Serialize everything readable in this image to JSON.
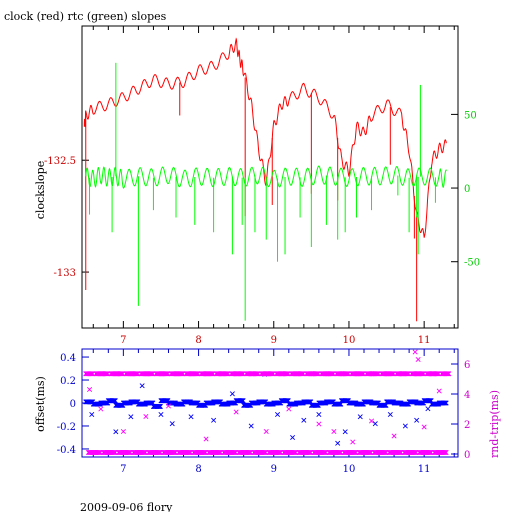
{
  "chart_data": [
    {
      "type": "line",
      "title": "clock (red) rtc (green) slopes",
      "xlim": [
        6.45,
        11.45
      ],
      "x_ticks": [
        7,
        8,
        9,
        10,
        11
      ],
      "ylabel_left": "clockslope",
      "ylim_left": [
        -133.25,
        -131.9
      ],
      "y_ticks_left": [
        -132.5,
        -133
      ],
      "y_ticklabels_left": [
        "-132.5",
        "-133"
      ],
      "ylim_right": [
        -95,
        110
      ],
      "y_ticks_right": [
        50,
        0,
        -50
      ],
      "y_ticklabels_right": [
        "50",
        "0",
        "-50"
      ],
      "colors": {
        "axes": "#000000",
        "x_ticks": "#cc0000",
        "left_axis": "#cc0000",
        "right_axis": "#00cc00"
      },
      "series": [
        {
          "axis": "left",
          "color": "#ff0000",
          "x": [
            6.48,
            6.5,
            6.6,
            6.8,
            7.0,
            7.2,
            7.4,
            7.6,
            7.8,
            8.0,
            8.2,
            8.4,
            8.5,
            8.55,
            8.6,
            8.7,
            8.8,
            8.9,
            9.0,
            9.1,
            9.2,
            9.4,
            9.6,
            9.8,
            9.9,
            10.0,
            10.1,
            10.2,
            10.3,
            10.5,
            10.7,
            10.8,
            10.9,
            11.0,
            11.1,
            11.2,
            11.3
          ],
          "y": [
            -132.35,
            -132.3,
            -132.27,
            -132.25,
            -132.22,
            -132.18,
            -132.14,
            -132.16,
            -132.15,
            -132.1,
            -132.08,
            -132.02,
            -131.98,
            -132.05,
            -132.1,
            -132.25,
            -132.45,
            -132.6,
            -132.35,
            -132.25,
            -132.23,
            -132.18,
            -132.22,
            -132.3,
            -132.5,
            -132.55,
            -132.35,
            -132.38,
            -132.3,
            -132.25,
            -132.3,
            -132.45,
            -132.75,
            -132.85,
            -132.5,
            -132.45,
            -132.43
          ],
          "spikes_x": [
            6.5,
            7.75,
            8.62,
            8.98,
            9.5,
            9.85,
            10.55,
            10.87,
            10.9
          ],
          "spikes_y": [
            -133.08,
            -132.3,
            -132.75,
            -132.7,
            -132.65,
            -132.68,
            -132.52,
            -132.85,
            -133.22
          ]
        },
        {
          "axis": "right",
          "color": "#00ff00",
          "x": [
            6.5,
            6.6,
            6.7,
            6.8,
            6.9,
            7.0,
            7.2,
            7.4,
            7.6,
            7.8,
            8.0,
            8.2,
            8.4,
            8.6,
            8.8,
            9.0,
            9.2,
            9.4,
            9.6,
            9.8,
            10.0,
            10.2,
            10.4,
            10.6,
            10.8,
            11.0,
            11.2,
            11.3
          ],
          "y": [
            8,
            6,
            9,
            7,
            8,
            6,
            8,
            7,
            9,
            6,
            8,
            7,
            8,
            7,
            9,
            6,
            8,
            7,
            9,
            8,
            7,
            8,
            8,
            9,
            7,
            8,
            7,
            6
          ],
          "spikes_x": [
            6.55,
            6.85,
            6.9,
            7.2,
            7.4,
            7.7,
            7.95,
            8.2,
            8.45,
            8.58,
            8.62,
            8.75,
            8.9,
            9.05,
            9.15,
            9.35,
            9.5,
            9.7,
            9.85,
            9.95,
            10.1,
            10.3,
            10.65,
            10.8,
            10.9,
            10.92,
            10.95,
            11.15
          ],
          "spikes_y": [
            -18,
            -30,
            85,
            -80,
            -15,
            -20,
            -25,
            -30,
            -45,
            -25,
            -90,
            -30,
            -35,
            -50,
            -45,
            -20,
            -40,
            -25,
            -35,
            -30,
            -20,
            -15,
            -5,
            -30,
            -20,
            -45,
            70,
            -10
          ]
        }
      ]
    },
    {
      "type": "scatter",
      "xlim": [
        6.45,
        11.45
      ],
      "x_ticks": [
        7,
        8,
        9,
        10,
        11
      ],
      "ylabel_left": "offset(ms)",
      "ylim_left": [
        -0.47,
        0.47
      ],
      "y_ticks_left": [
        0.4,
        0.2,
        0,
        -0.2,
        -0.4
      ],
      "y_ticklabels_left": [
        "0.4",
        "0.2",
        "0",
        "-0.2",
        "-0.4"
      ],
      "ylabel_right": "rnd-trip(ms)",
      "ylim_right": [
        -0.2,
        7
      ],
      "y_ticks_right": [
        6,
        4,
        2,
        0
      ],
      "y_ticklabels_right": [
        "6",
        "4",
        "2",
        "0"
      ],
      "colors": {
        "axes": "#0000cc",
        "x_ticks": "#0000cc",
        "left_axis": "#0000cc",
        "right_axis": "#cc00cc"
      },
      "series": [
        {
          "axis": "left",
          "color": "#0000ff",
          "marker": "x",
          "x": [
            6.5,
            6.6,
            6.7,
            6.8,
            6.9,
            7.0,
            7.1,
            7.2,
            7.3,
            7.4,
            7.5,
            7.6,
            7.7,
            7.8,
            7.9,
            8.0,
            8.1,
            8.2,
            8.3,
            8.4,
            8.5,
            8.6,
            8.7,
            8.8,
            8.9,
            9.0,
            9.1,
            9.2,
            9.3,
            9.4,
            9.5,
            9.6,
            9.7,
            9.8,
            9.9,
            10.0,
            10.1,
            10.2,
            10.3,
            10.4,
            10.5,
            10.6,
            10.7,
            10.8,
            10.9,
            11.0,
            11.1,
            11.2,
            11.3
          ],
          "y": [
            0.01,
            -0.01,
            0.0,
            0.02,
            -0.02,
            0.0,
            0.01,
            -0.01,
            0.0,
            -0.03,
            0.02,
            0.0,
            -0.01,
            0.01,
            0.0,
            -0.02,
            0.0,
            0.01,
            -0.01,
            0.0,
            0.02,
            -0.02,
            0.0,
            0.01,
            -0.01,
            0.0,
            0.02,
            -0.01,
            0.0,
            0.01,
            -0.02,
            0.0,
            0.01,
            -0.01,
            0.02,
            0.0,
            -0.01,
            0.01,
            0.0,
            -0.02,
            0.01,
            0.0,
            -0.01,
            0.01,
            0.0,
            0.02,
            -0.01,
            0.0,
            0.01
          ],
          "outliers_x": [
            6.58,
            6.9,
            7.1,
            7.25,
            7.5,
            7.65,
            7.9,
            8.2,
            8.45,
            8.7,
            8.88,
            9.05,
            9.25,
            9.4,
            9.6,
            9.85,
            9.95,
            10.15,
            10.35,
            10.55,
            10.75,
            10.9,
            11.05
          ],
          "outliers_y": [
            -0.1,
            -0.25,
            -0.12,
            0.15,
            -0.1,
            -0.18,
            -0.12,
            -0.15,
            0.08,
            -0.2,
            0.25,
            -0.1,
            -0.3,
            -0.15,
            -0.1,
            -0.35,
            -0.25,
            -0.12,
            -0.18,
            -0.1,
            -0.2,
            -0.15,
            -0.05
          ]
        },
        {
          "axis": "right",
          "color": "#ff00ff",
          "marker": "x",
          "x": [
            6.5,
            6.6,
            6.7,
            6.8,
            6.9,
            7.0,
            7.1,
            7.2,
            7.3,
            7.4,
            7.5,
            7.6,
            7.7,
            7.8,
            7.9,
            8.0,
            8.1,
            8.2,
            8.3,
            8.4,
            8.5,
            8.6,
            8.7,
            8.8,
            8.9,
            9.0,
            9.1,
            9.2,
            9.3,
            9.4,
            9.5,
            9.6,
            9.7,
            9.8,
            9.9,
            10.0,
            10.1,
            10.2,
            10.3,
            10.4,
            10.5,
            10.6,
            10.7,
            10.8,
            10.9,
            11.0,
            11.1,
            11.2,
            11.3
          ],
          "y": [
            5.4,
            0.1,
            5.4,
            0.1,
            5.3,
            0.1,
            5.4,
            0.1,
            5.4,
            0.1,
            5.3,
            0.1,
            5.4,
            0.1,
            5.4,
            0.1,
            5.4,
            0.1,
            5.3,
            0.1,
            5.4,
            0.1,
            5.4,
            0.1,
            5.4,
            0.1,
            5.3,
            0.1,
            5.4,
            0.1,
            5.4,
            0.1,
            5.4,
            0.1,
            5.3,
            0.1,
            5.4,
            0.1,
            5.4,
            0.1,
            5.3,
            0.1,
            5.4,
            0.1,
            5.4,
            0.1,
            5.4,
            0.1,
            5.3
          ],
          "outliers_x": [
            6.55,
            6.7,
            7.0,
            7.3,
            7.6,
            8.1,
            8.5,
            8.9,
            9.2,
            9.6,
            9.8,
            10.05,
            10.3,
            10.6,
            10.88,
            10.92,
            11.0,
            11.2
          ],
          "outliers_y": [
            4.3,
            3.0,
            1.5,
            2.5,
            3.2,
            1.0,
            2.8,
            1.5,
            3.0,
            2.0,
            1.5,
            0.8,
            2.2,
            1.2,
            6.8,
            6.3,
            1.8,
            4.2
          ]
        }
      ]
    }
  ],
  "footer": "2009-09-06 flory"
}
